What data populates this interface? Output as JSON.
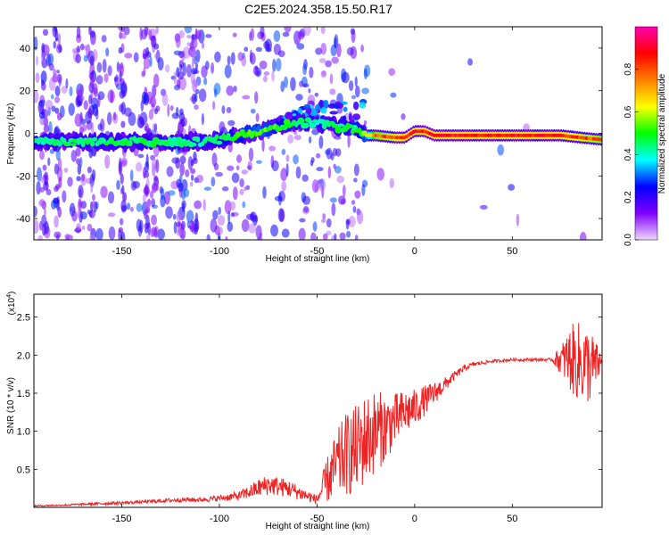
{
  "title": "C2E5.2024.358.15.50.R17",
  "chart_data": [
    {
      "type": "heatmap",
      "xlabel": "Height of straight line (km)",
      "ylabel": "Frequency (Hz)",
      "xlim": [
        -195,
        96
      ],
      "ylim": [
        -50,
        50
      ],
      "x_ticks": [
        -150,
        -100,
        -50,
        0,
        50
      ],
      "y_ticks": [
        -40,
        -20,
        0,
        20,
        40
      ],
      "colorbar": {
        "label": "Normalized spectral amplitude",
        "range": [
          0,
          1
        ],
        "ticks": [
          "0.0",
          "0.2",
          "0.4",
          "0.6",
          "0.8"
        ],
        "colors": [
          "#f0d8ff",
          "#8000ff",
          "#0000ff",
          "#00ffff",
          "#00ff00",
          "#ffff00",
          "#ff8000",
          "#ff0000",
          "#ff00b0"
        ]
      },
      "ridge": {
        "x": [
          -195,
          -170,
          -150,
          -130,
          -110,
          -100,
          -90,
          -80,
          -70,
          -60,
          -50,
          -40,
          -30,
          -25,
          -20,
          -10,
          -5,
          0,
          5,
          10,
          20,
          50,
          75,
          85,
          96
        ],
        "freq_hz": [
          -4,
          -4,
          -4,
          -4,
          -4,
          -3,
          -1,
          1,
          3,
          5,
          5,
          3,
          2,
          -1,
          -1,
          -2,
          -2,
          1,
          1,
          -1,
          -1,
          -1,
          -1,
          -2,
          -3
        ],
        "peak_amplitude": [
          0.45,
          0.5,
          0.5,
          0.5,
          0.45,
          0.5,
          0.55,
          0.6,
          0.55,
          0.5,
          0.45,
          0.5,
          0.5,
          0.6,
          0.85,
          0.9,
          0.95,
          0.95,
          0.95,
          0.95,
          0.95,
          0.95,
          0.95,
          0.9,
          0.85
        ]
      }
    },
    {
      "type": "line",
      "xlabel": "Height of straight line (km)",
      "ylabel": "SNR (10 * v/v)",
      "y_multiplier": "(x10^4)",
      "y_multiplier_base": "(x10",
      "y_multiplier_exp": "4",
      "y_multiplier_close": ")",
      "xlim": [
        -195,
        96
      ],
      "ylim": [
        0,
        2.8
      ],
      "x_ticks": [
        -150,
        -100,
        -50,
        0,
        50
      ],
      "y_ticks": [
        "0.5",
        "1.0",
        "1.5",
        "2.0",
        "2.5"
      ],
      "y_tick_values": [
        0.5,
        1.0,
        1.5,
        2.0,
        2.5
      ],
      "series_color": "#ee2222",
      "x": [
        -195,
        -180,
        -160,
        -140,
        -120,
        -110,
        -100,
        -90,
        -80,
        -75,
        -65,
        -55,
        -50,
        -45,
        -40,
        -35,
        -30,
        -25,
        -20,
        -15,
        -10,
        -5,
        0,
        5,
        10,
        15,
        20,
        25,
        30,
        40,
        50,
        60,
        70,
        75,
        80,
        85,
        90,
        96
      ],
      "y": [
        0.02,
        0.03,
        0.05,
        0.07,
        0.1,
        0.1,
        0.12,
        0.15,
        0.25,
        0.3,
        0.25,
        0.15,
        0.1,
        0.35,
        0.55,
        0.7,
        0.75,
        0.9,
        1.0,
        1.05,
        1.15,
        1.25,
        1.3,
        1.4,
        1.5,
        1.6,
        1.72,
        1.82,
        1.88,
        1.92,
        1.94,
        1.94,
        1.94,
        1.94,
        1.95,
        1.9,
        1.85,
        1.9
      ],
      "noise_amplitude": [
        0.01,
        0.01,
        0.02,
        0.02,
        0.03,
        0.03,
        0.04,
        0.06,
        0.12,
        0.14,
        0.12,
        0.08,
        0.06,
        0.3,
        0.45,
        0.55,
        0.6,
        0.6,
        0.55,
        0.45,
        0.35,
        0.3,
        0.25,
        0.2,
        0.15,
        0.1,
        0.06,
        0.04,
        0.03,
        0.02,
        0.02,
        0.02,
        0.02,
        0.2,
        0.45,
        0.55,
        0.5,
        0.1
      ]
    }
  ]
}
